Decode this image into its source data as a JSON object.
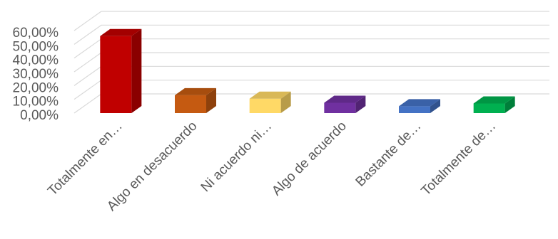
{
  "chart_data": {
    "type": "bar",
    "style": "3d-column",
    "title": "",
    "xlabel": "",
    "ylabel": "",
    "ylim": [
      0,
      0.6
    ],
    "ytick_step": 0.1,
    "ytick_labels": [
      "0,00%",
      "10,00%",
      "20,00%",
      "30,00%",
      "40,00%",
      "50,00%",
      "60,00%"
    ],
    "grid": true,
    "legend": "none",
    "categories": [
      "Totalmente en…",
      "Algo en desacuerdo",
      "Ni acuerdo ni…",
      "Algo de acuerdo",
      "Bastante de…",
      "Totalmente de…"
    ],
    "values": [
      0.56,
      0.13,
      0.105,
      0.075,
      0.05,
      0.07
    ],
    "colors": [
      "#c00000",
      "#c55a11",
      "#ffd966",
      "#7030a0",
      "#4472c4",
      "#00b050"
    ]
  }
}
